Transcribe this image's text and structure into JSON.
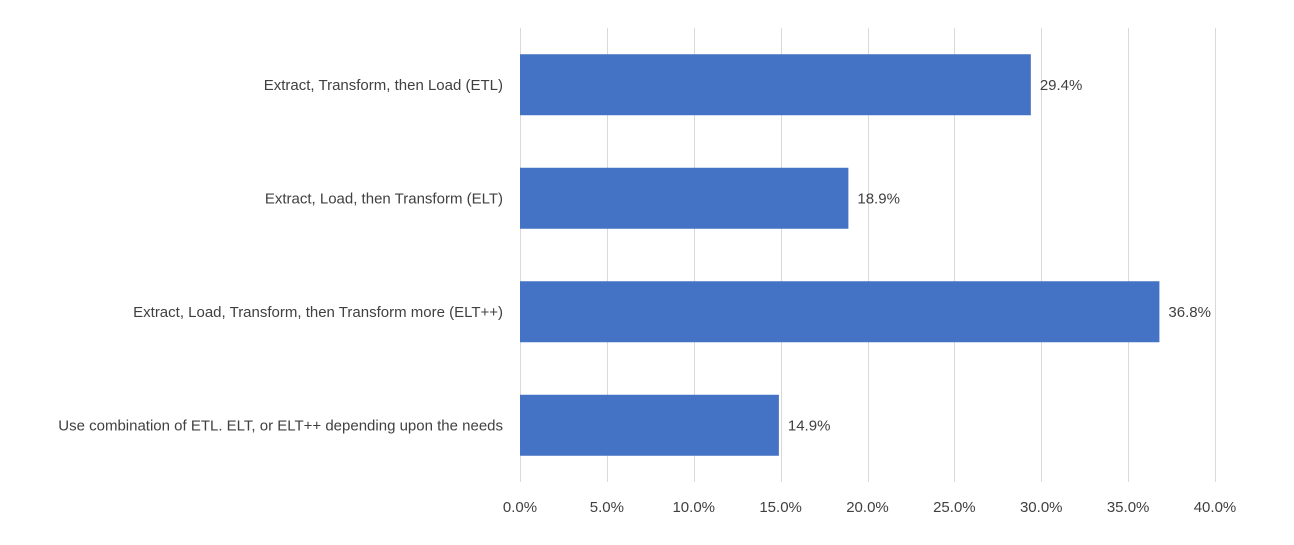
{
  "chart_data": {
    "type": "bar",
    "orientation": "horizontal",
    "title": "",
    "xlabel": "",
    "ylabel": "",
    "categories": [
      "Extract, Transform, then Load (ETL)",
      "Extract, Load, then Transform (ELT)",
      "Extract, Load, Transform, then Transform more (ELT++)",
      "Use combination of ETL. ELT, or ELT++ depending upon the needs"
    ],
    "values": [
      29.4,
      18.9,
      36.8,
      14.9
    ],
    "data_labels": [
      "29.4%",
      "18.9%",
      "36.8%",
      "14.9%"
    ],
    "xlim": [
      0,
      40
    ],
    "x_ticks": [
      0,
      5,
      10,
      15,
      20,
      25,
      30,
      35,
      40
    ],
    "x_tick_labels": [
      "0.0%",
      "5.0%",
      "10.0%",
      "15.0%",
      "20.0%",
      "25.0%",
      "30.0%",
      "35.0%",
      "40.0%"
    ],
    "grid": "vertical",
    "legend": "none",
    "bar_color": "#4472c4",
    "grid_color": "#d9d9d9",
    "text_color": "#404040"
  }
}
